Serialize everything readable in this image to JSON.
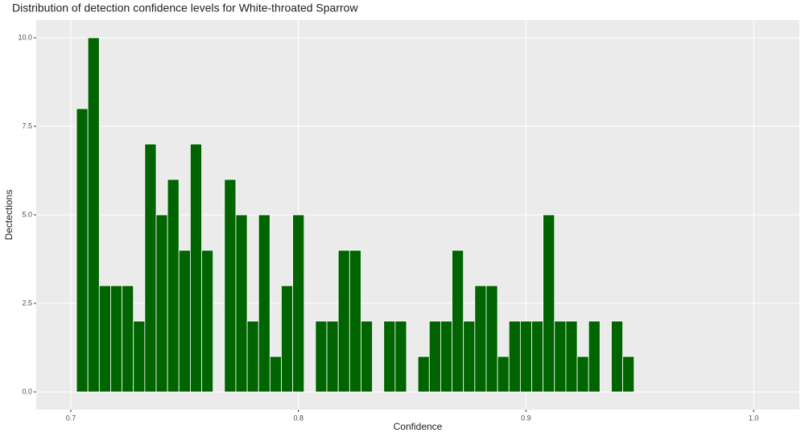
{
  "chart_data": {
    "type": "histogram",
    "title": "Distribution of detection confidence levels for White-throated Sparrow",
    "x_label": "Confidence",
    "y_label": "Dectections",
    "bins": [
      0.7025,
      0.7075,
      0.7125,
      0.7175,
      0.7225,
      0.7275,
      0.7325,
      0.7375,
      0.7425,
      0.7475,
      0.7525,
      0.7575,
      0.7625,
      0.7675,
      0.7725,
      0.7775,
      0.7825,
      0.7875,
      0.7925,
      0.7975,
      0.8025,
      0.8075,
      0.8125,
      0.8175,
      0.8225,
      0.8275,
      0.8325,
      0.8375,
      0.8425,
      0.8475,
      0.8525,
      0.8575,
      0.8625,
      0.8675,
      0.8725,
      0.8775,
      0.8825,
      0.8875,
      0.8925,
      0.8975,
      0.9025,
      0.9075,
      0.9125,
      0.9175,
      0.9225,
      0.9275,
      0.9325,
      0.9375,
      0.9425,
      0.9475
    ],
    "counts": [
      8,
      10,
      3,
      3,
      3,
      2,
      7,
      5,
      6,
      4,
      7,
      4,
      0,
      6,
      5,
      2,
      5,
      1,
      3,
      5,
      0,
      2,
      2,
      4,
      4,
      2,
      0,
      2,
      2,
      0,
      1,
      2,
      2,
      4,
      2,
      3,
      3,
      1,
      2,
      2,
      2,
      5,
      2,
      2,
      1,
      2,
      0,
      2,
      1
    ],
    "color": "#006400",
    "xlim": [
      0.6848,
      1.0201
    ],
    "xticks": [
      0.7,
      0.8,
      0.9,
      {
        "value": 1.0,
        "label": "1.0"
      }
    ],
    "ylim": [
      -0.5,
      10.5
    ],
    "yticks": [
      {
        "value": 0,
        "label": "0.0"
      },
      2.5,
      {
        "value": 5,
        "label": "5.0"
      },
      7.5,
      {
        "value": 10,
        "label": "10.0"
      }
    ],
    "grid": true
  }
}
